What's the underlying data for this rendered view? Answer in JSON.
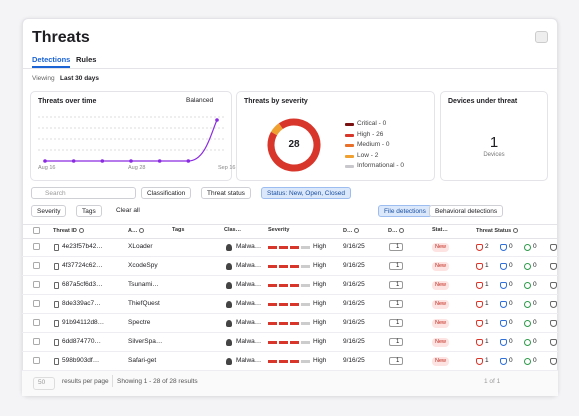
{
  "header": {
    "title": "Threats"
  },
  "tabs": [
    "Detections",
    "Rules"
  ],
  "viewing": {
    "label": "Viewing",
    "value": "Last 30 days"
  },
  "over_time": {
    "title": "Threats over time",
    "mode": "Balanced",
    "x_labels": [
      "Aug 16",
      "Aug 28",
      "Sep 16"
    ],
    "values": [
      0,
      0,
      0,
      0,
      0,
      0,
      28
    ],
    "color": "#8a2be2"
  },
  "severity_chart": {
    "title": "Threats by severity",
    "total": 28,
    "items": [
      {
        "label": "Critical - 0",
        "value": 0,
        "color": "#7a1010"
      },
      {
        "label": "High - 26",
        "value": 26,
        "color": "#d9362b"
      },
      {
        "label": "Medium - 0",
        "value": 0,
        "color": "#e8702a"
      },
      {
        "label": "Low - 2",
        "value": 2,
        "color": "#f0a030"
      },
      {
        "label": "Informational - 0",
        "value": 0,
        "color": "#c8c8cc"
      }
    ]
  },
  "devices_card": {
    "title": "Devices under threat",
    "value": 1,
    "label": "Devices"
  },
  "filters": {
    "search": "Search",
    "classification": "Classification",
    "threat_status": "Threat status",
    "status": "Status: New, Open, Closed",
    "severity": "Severity",
    "tags": "Tags",
    "clear": "Clear all",
    "file": "File detections",
    "behavioral": "Behavioral detections"
  },
  "table": {
    "columns": [
      "Threat ID",
      "A…",
      "Tags",
      "Clas…",
      "Severity",
      "D…",
      "D…",
      "Stat…",
      "Threat Status"
    ],
    "rows": [
      {
        "id": "4e23f57b42…",
        "name": "XLoader",
        "classification": "Malwa…",
        "severity": "High",
        "date": "9/16/25",
        "devices": 1,
        "status": "New",
        "threat_status": [
          2,
          0,
          0
        ]
      },
      {
        "id": "4f37724c62…",
        "name": "XcodeSpy",
        "classification": "Malwa…",
        "severity": "High",
        "date": "9/16/25",
        "devices": 1,
        "status": "New",
        "threat_status": [
          1,
          0,
          0
        ]
      },
      {
        "id": "687a5cf6d3…",
        "name": "Tsunami…",
        "classification": "Malwa…",
        "severity": "High",
        "date": "9/16/25",
        "devices": 1,
        "status": "New",
        "threat_status": [
          1,
          0,
          0
        ]
      },
      {
        "id": "8de339ac7…",
        "name": "ThiefQuest",
        "classification": "Malwa…",
        "severity": "High",
        "date": "9/16/25",
        "devices": 1,
        "status": "New",
        "threat_status": [
          1,
          0,
          0
        ]
      },
      {
        "id": "91b94112d8…",
        "name": "Spectre",
        "classification": "Malwa…",
        "severity": "High",
        "date": "9/16/25",
        "devices": 1,
        "status": "New",
        "threat_status": [
          1,
          0,
          0
        ]
      },
      {
        "id": "6dd874770…",
        "name": "SilverSpa…",
        "classification": "Malwa…",
        "severity": "High",
        "date": "9/16/25",
        "devices": 1,
        "status": "New",
        "threat_status": [
          1,
          0,
          0
        ]
      },
      {
        "id": "598b903df…",
        "name": "Safari-get",
        "classification": "Malwa…",
        "severity": "High",
        "date": "9/16/25",
        "devices": 1,
        "status": "New",
        "threat_status": [
          1,
          0,
          0
        ]
      }
    ]
  },
  "footer": {
    "per_page": 50,
    "per_page_label": "results per page",
    "showing": "Showing 1 - 28 of 28 results",
    "page": "1 of 1"
  }
}
